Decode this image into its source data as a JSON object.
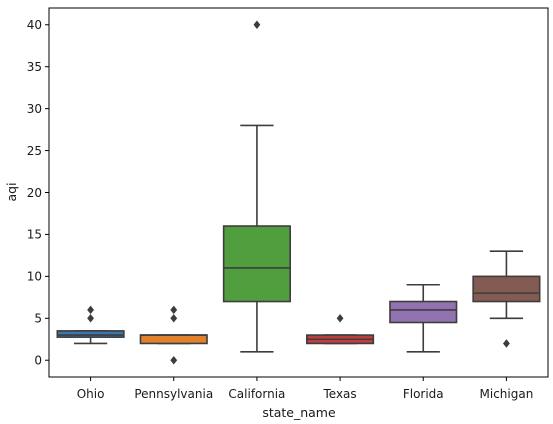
{
  "chart_data": {
    "type": "box",
    "xlabel": "state_name",
    "ylabel": "aqi",
    "ylim": [
      -2,
      42
    ],
    "yticks": [
      0,
      5,
      10,
      15,
      20,
      25,
      30,
      35,
      40
    ],
    "grid": false,
    "boxes": [
      {
        "category": "Ohio",
        "color": "#3b76af",
        "whisker_low": 2,
        "q1": 2.75,
        "median": 3,
        "q3": 3.5,
        "whisker_high": 3.5,
        "outliers": [
          5,
          6
        ]
      },
      {
        "category": "Pennsylvania",
        "color": "#e1812b",
        "whisker_low": 2,
        "q1": 2,
        "median": 3,
        "q3": 3,
        "whisker_high": 3,
        "outliers": [
          0,
          5,
          6
        ]
      },
      {
        "category": "California",
        "color": "#519e3e",
        "whisker_low": 1,
        "q1": 7,
        "median": 11,
        "q3": 16,
        "whisker_high": 28,
        "outliers": [
          40
        ]
      },
      {
        "category": "Texas",
        "color": "#c03d3e",
        "whisker_low": 2,
        "q1": 2,
        "median": 2.5,
        "q3": 3,
        "whisker_high": 3,
        "outliers": [
          5
        ]
      },
      {
        "category": "Florida",
        "color": "#9372b2",
        "whisker_low": 1,
        "q1": 4.5,
        "median": 6,
        "q3": 7,
        "whisker_high": 9,
        "outliers": []
      },
      {
        "category": "Michigan",
        "color": "#845b53",
        "whisker_low": 5,
        "q1": 7,
        "median": 8,
        "q3": 10,
        "whisker_high": 13,
        "outliers": [
          2
        ]
      }
    ]
  }
}
